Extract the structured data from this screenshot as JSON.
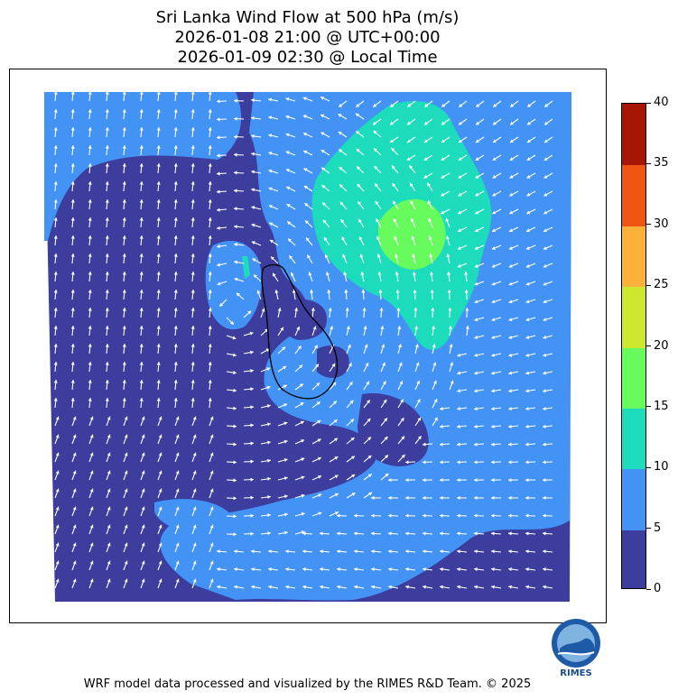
{
  "title": {
    "line1": "Sri Lanka Wind Flow at 500 hPa (m/s)",
    "line2": "2026-01-08 21:00 @ UTC+00:00",
    "line3": "2026-01-09 02:30 @ Local Time"
  },
  "colorbar": {
    "levels": [
      {
        "label": "0",
        "color": "#3d3d9e"
      },
      {
        "label": "5",
        "color": "#4393f5"
      },
      {
        "label": "10",
        "color": "#1ddcbc"
      },
      {
        "label": "15",
        "color": "#67fb5d"
      },
      {
        "label": "20",
        "color": "#cde82f"
      },
      {
        "label": "25",
        "color": "#fbb13a"
      },
      {
        "label": "30",
        "color": "#ee5412"
      },
      {
        "label": "35",
        "color": "#a71603"
      },
      {
        "label": "40",
        "color": ""
      }
    ]
  },
  "map": {
    "background_color": "#3d3d9e",
    "arrow_color": "#ffffff",
    "coastline_color": "#000000"
  },
  "logo": {
    "text": "RIMES"
  },
  "footer": "WRF model data processed and visualized by the RIMES R&D Team. © 2025"
}
